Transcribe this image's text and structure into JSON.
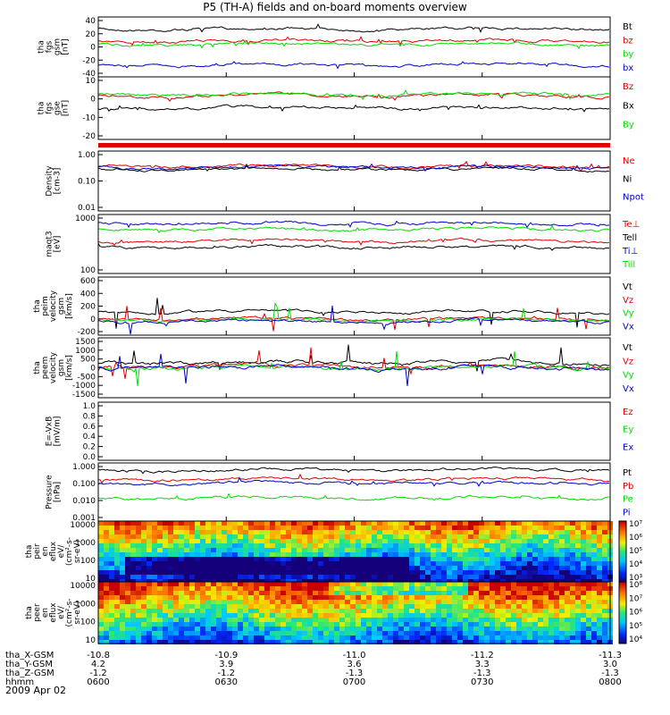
{
  "title": "P5 (TH-A) fields and on-board moments overview",
  "date": "2009 Apr 02",
  "colors": {
    "black": "#000000",
    "red": "#e00000",
    "green": "#00dd00",
    "blue": "#0000cc"
  },
  "chart_data": [
    {
      "id": "fgs",
      "type": "line",
      "ylabel": [
        "tha",
        "fgs",
        "gsm",
        "[nT]"
      ],
      "yticks": [
        "40",
        "20",
        "0",
        "-20",
        "-40"
      ],
      "series": [
        {
          "name": "Bt",
          "color": "black",
          "level": 0.2
        },
        {
          "name": "bz",
          "color": "red",
          "level": 0.4
        },
        {
          "name": "by",
          "color": "green",
          "level": 0.45
        },
        {
          "name": "bx",
          "color": "blue",
          "level": 0.8
        }
      ]
    },
    {
      "id": "fgs_sm",
      "type": "line",
      "ylabel": [
        "tha",
        "fgs",
        "gse",
        "[nT]"
      ],
      "yticks": [
        "10",
        "0",
        "-10",
        "-20"
      ],
      "series": [
        {
          "name": "Bz",
          "color": "red",
          "level": 0.3
        },
        {
          "name": "Bx",
          "color": "black",
          "level": 0.5
        },
        {
          "name": "By",
          "color": "green",
          "level": 0.28
        }
      ]
    },
    {
      "id": "density",
      "type": "line",
      "ylabel": [
        "Density",
        "[cm-3]"
      ],
      "yticks": [
        "1.00",
        "0.10",
        "0.01"
      ],
      "series": [
        {
          "name": "Ne",
          "color": "red",
          "level": 0.25
        },
        {
          "name": "Ni",
          "color": "black",
          "level": 0.3
        },
        {
          "name": "Npot",
          "color": "blue",
          "level": 0.27
        }
      ]
    },
    {
      "id": "temp",
      "type": "line",
      "ylabel": [
        "maqt3",
        "[eV]"
      ],
      "yticks": [
        "1000",
        "100"
      ],
      "series": [
        {
          "name": "Te⊥",
          "color": "red",
          "level": 0.45
        },
        {
          "name": "Tell",
          "color": "black",
          "level": 0.55
        },
        {
          "name": "Ti⊥",
          "color": "blue",
          "level": 0.15
        },
        {
          "name": "Till",
          "color": "green",
          "level": 0.25
        }
      ]
    },
    {
      "id": "peim_vel",
      "type": "line",
      "ylabel": [
        "tha",
        "peim",
        "velocity",
        "gsm",
        "[km/s]"
      ],
      "yticks": [
        "600",
        "400",
        "200",
        "0",
        "-200"
      ],
      "series": [
        {
          "name": "Vt",
          "color": "black",
          "level": 0.6
        },
        {
          "name": "Vz",
          "color": "red",
          "level": 0.72
        },
        {
          "name": "Vy",
          "color": "green",
          "level": 0.74
        },
        {
          "name": "Vx",
          "color": "blue",
          "level": 0.76
        }
      ]
    },
    {
      "id": "peem_vel",
      "type": "line",
      "ylabel": [
        "tha",
        "peem",
        "velocity",
        "gsm",
        "[km/s]"
      ],
      "yticks": [
        "1500",
        "1000",
        "500",
        "0",
        "-500",
        "-1000",
        "-1500"
      ],
      "series": [
        {
          "name": "Vt",
          "color": "black",
          "level": 0.42
        },
        {
          "name": "Vz",
          "color": "red",
          "level": 0.48
        },
        {
          "name": "Vy",
          "color": "green",
          "level": 0.49
        },
        {
          "name": "Vx",
          "color": "blue",
          "level": 0.5
        }
      ]
    },
    {
      "id": "efield",
      "type": "line",
      "ylabel": [
        "E=-VxB",
        "[mV/m]"
      ],
      "yticks": [
        "1.0",
        "0.8",
        "0.6",
        "0.4",
        "0.2",
        "0.0"
      ],
      "series": [
        {
          "name": "Ez",
          "color": "red"
        },
        {
          "name": "Ey",
          "color": "green"
        },
        {
          "name": "Ex",
          "color": "blue"
        }
      ]
    },
    {
      "id": "pressure",
      "type": "line",
      "ylabel": [
        "Pressure",
        "[nPa]"
      ],
      "yticks": [
        "1.000",
        "0.100",
        "0.010",
        "0.001"
      ],
      "series": [
        {
          "name": "Pt",
          "color": "black",
          "level": 0.12
        },
        {
          "name": "Pb",
          "color": "red",
          "level": 0.28
        },
        {
          "name": "Pe",
          "color": "green",
          "level": 0.6
        },
        {
          "name": "Pi",
          "color": "blue",
          "level": 0.35
        }
      ]
    },
    {
      "id": "peir_flux",
      "type": "heatmap",
      "ylabel": [
        "tha",
        "peir",
        "en",
        "eflux",
        "eV/",
        "(cm²-s-",
        "sr-eV)"
      ],
      "yticks": [
        "10000",
        "1000",
        "100",
        "10"
      ],
      "colorbar": [
        "10⁷",
        "10⁶",
        "10⁵",
        "10⁴",
        "10³"
      ]
    },
    {
      "id": "peer_flux",
      "type": "heatmap",
      "ylabel": [
        "tha",
        "peer",
        "en",
        "eflux",
        "eV/",
        "(cm²-s-",
        "sr-eV)"
      ],
      "yticks": [
        "10000",
        "1000",
        "100",
        "10"
      ],
      "colorbar": [
        "10⁸",
        "10⁷",
        "10⁶",
        "10⁵",
        "10⁴"
      ]
    }
  ],
  "xaxis": {
    "rows": [
      {
        "label": "tha_X-GSM",
        "values": [
          "-10.8",
          "-10.9",
          "-11.0",
          "-11.2",
          "-11.3"
        ]
      },
      {
        "label": "tha_Y-GSM",
        "values": [
          "4.2",
          "3.9",
          "3.6",
          "3.3",
          "3.0"
        ]
      },
      {
        "label": "tha_Z-GSM",
        "values": [
          "-1.2",
          "-1.2",
          "-1.3",
          "-1.3",
          "-1.3"
        ]
      },
      {
        "label": "hhmm",
        "values": [
          "0600",
          "0630",
          "0700",
          "0730",
          "0800"
        ]
      }
    ]
  }
}
